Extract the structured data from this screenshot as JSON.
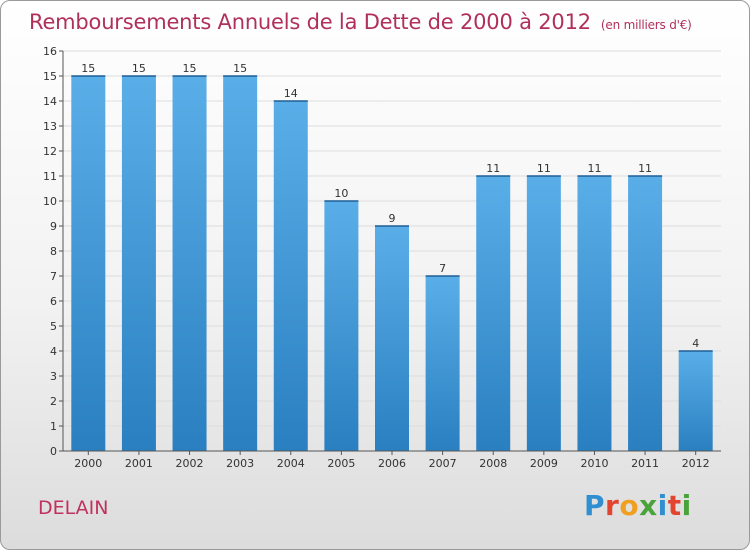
{
  "title": "Remboursements Annuels de la Dette de 2000 à 2012",
  "subtitle": "(en milliers d'€)",
  "commune": "DELAIN",
  "logo": {
    "text": "Proxiti",
    "letters": [
      {
        "ch": "P",
        "color": "#2f8fd0"
      },
      {
        "ch": "r",
        "color": "#e1452f"
      },
      {
        "ch": "o",
        "color": "#f0a020"
      },
      {
        "ch": "x",
        "color": "#4aa33a"
      },
      {
        "ch": "i",
        "color": "#2f8fd0"
      },
      {
        "ch": "t",
        "color": "#e1452f"
      },
      {
        "ch": "i",
        "color": "#4aa33a"
      }
    ]
  },
  "colors": {
    "bar_top": "#5aaee8",
    "bar_bottom": "#2a7fc0",
    "title": "#b0305a",
    "axis": "#555555"
  },
  "chart_data": {
    "type": "bar",
    "categories": [
      "2000",
      "2001",
      "2002",
      "2003",
      "2004",
      "2005",
      "2006",
      "2007",
      "2008",
      "2009",
      "2010",
      "2011",
      "2012"
    ],
    "values": [
      15,
      15,
      15,
      15,
      14,
      10,
      9,
      7,
      11,
      11,
      11,
      11,
      4
    ],
    "ylim": [
      0,
      16
    ],
    "yticks": [
      0,
      1,
      2,
      3,
      4,
      5,
      6,
      7,
      8,
      9,
      10,
      11,
      12,
      13,
      14,
      15,
      16
    ],
    "grid": true,
    "xlabel": "",
    "ylabel": ""
  }
}
